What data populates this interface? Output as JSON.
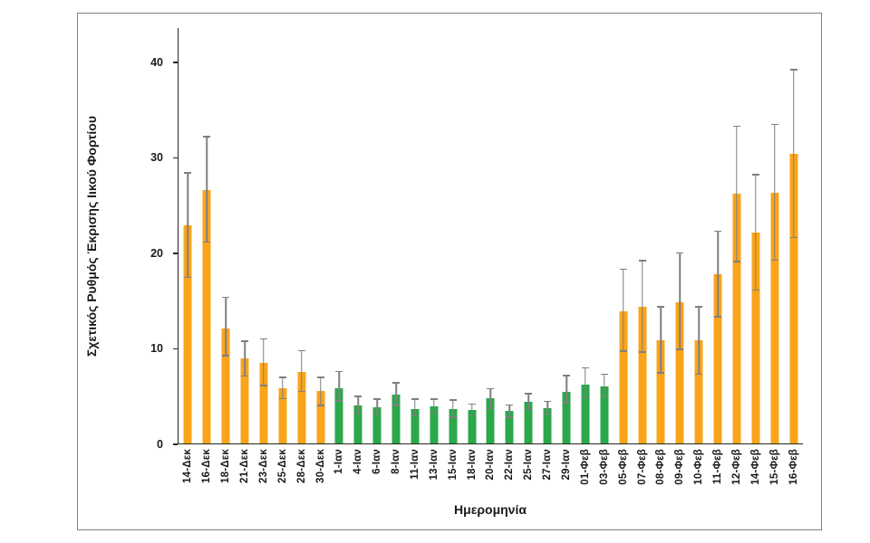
{
  "chart_data": {
    "type": "bar",
    "title": "",
    "xlabel": "Ημερομηνία",
    "ylabel": "Σχετικός Ρυθμός Έκρισης Ιικού Φορτίου",
    "ylim": [
      0,
      43.5
    ],
    "yticks": [
      0,
      10,
      20,
      30,
      40
    ],
    "grid": false,
    "legend": false,
    "bar_color_map": {
      "orange": "#FAA41A",
      "green": "#2BA84A"
    },
    "error_bar_color": "#7f7f7f",
    "categories": [
      "14-Δεκ",
      "16-Δεκ",
      "18-Δεκ",
      "21-Δεκ",
      "23-Δεκ",
      "25-Δεκ",
      "28-Δεκ",
      "30-Δεκ",
      "1-Ιαν",
      "4-Ιαν",
      "6-Ιαν",
      "8-Ιαν",
      "11-Ιαν",
      "13-Ιαν",
      "15-Ιαν",
      "18-Ιαν",
      "20-Ιαν",
      "22-Ιαν",
      "25-Ιαν",
      "27-Ιαν",
      "29-Ιαν",
      "01-Φεβ",
      "03-Φεβ",
      "05-Φεβ",
      "07-Φεβ",
      "08-Φεβ",
      "09-Φεβ",
      "10-Φεβ",
      "11-Φεβ",
      "12-Φεβ",
      "14-Φεβ",
      "15-Φεβ",
      "16-Φεβ"
    ],
    "values": [
      22.8,
      26.5,
      12.0,
      8.9,
      8.4,
      5.8,
      7.5,
      5.5,
      5.8,
      4.0,
      3.8,
      5.1,
      3.6,
      3.9,
      3.6,
      3.5,
      4.7,
      3.4,
      4.4,
      3.7,
      5.4,
      6.2,
      6.0,
      13.8,
      14.3,
      10.8,
      14.8,
      10.8,
      17.7,
      26.2,
      22.1,
      26.3,
      30.3
    ],
    "error_low": [
      17.3,
      21.0,
      9.1,
      7.0,
      6.0,
      4.6,
      5.4,
      3.9,
      4.4,
      3.1,
      3.0,
      3.9,
      2.8,
      3.1,
      2.7,
      2.8,
      3.6,
      2.7,
      3.5,
      3.0,
      4.2,
      4.7,
      4.8,
      9.6,
      9.5,
      7.3,
      9.8,
      7.2,
      13.2,
      19.0,
      16.0,
      19.1,
      21.5
    ],
    "error_high": [
      28.4,
      32.2,
      15.4,
      10.8,
      11.0,
      7.0,
      9.8,
      7.0,
      7.6,
      5.0,
      4.7,
      6.4,
      4.7,
      4.7,
      4.6,
      4.2,
      5.8,
      4.1,
      5.3,
      4.5,
      7.2,
      8.0,
      7.3,
      18.3,
      19.2,
      14.4,
      20.0,
      14.4,
      22.3,
      33.3,
      28.2,
      33.5,
      39.2
    ],
    "bar_colors": [
      "orange",
      "orange",
      "orange",
      "orange",
      "orange",
      "orange",
      "orange",
      "orange",
      "green",
      "green",
      "green",
      "green",
      "green",
      "green",
      "green",
      "green",
      "green",
      "green",
      "green",
      "green",
      "green",
      "green",
      "green",
      "orange",
      "orange",
      "orange",
      "orange",
      "orange",
      "orange",
      "orange",
      "orange",
      "orange",
      "orange"
    ]
  }
}
